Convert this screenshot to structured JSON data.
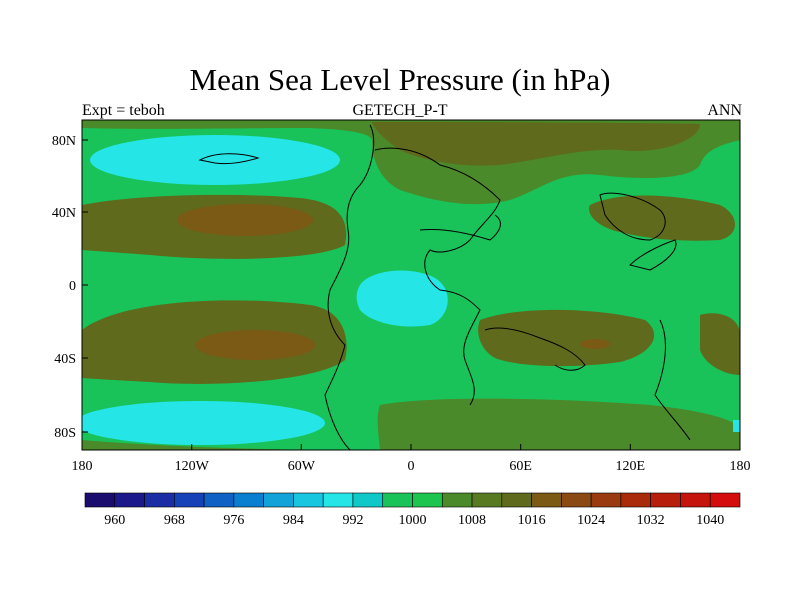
{
  "title": "Mean Sea Level Pressure (in hPa)",
  "subtitle": {
    "left": "Expt = teboh",
    "center": "GETECH_P-T",
    "right": "ANN"
  },
  "axes": {
    "x_ticks": [
      "180",
      "120W",
      "60W",
      "0",
      "60E",
      "120E",
      "180"
    ],
    "y_ticks": [
      "80N",
      "40N",
      "0",
      "40S",
      "80S"
    ]
  },
  "colorbar": {
    "labels": [
      "960",
      "968",
      "976",
      "984",
      "992",
      "1000",
      "1008",
      "1016",
      "1024",
      "1032",
      "1040"
    ],
    "colors": [
      "#1a0d6e",
      "#1c1a8a",
      "#1c2ea3",
      "#1642b8",
      "#0f62c4",
      "#0b7fd0",
      "#14a3d9",
      "#19c6e0",
      "#25e5e6",
      "#11c8c8",
      "#19c35a",
      "#1dc44e",
      "#4a8a2a",
      "#5a7a22",
      "#5f6a1c",
      "#7a5a14",
      "#8a4a12",
      "#9a3a10",
      "#aa2a0c",
      "#b81e0c",
      "#c4140c",
      "#d40c0c"
    ]
  },
  "colors": {
    "base": "#19c35a",
    "low": "#25e5e6",
    "high1": "#4a8a2a",
    "high2": "#5f6a1c",
    "high3": "#7a5a14"
  }
}
